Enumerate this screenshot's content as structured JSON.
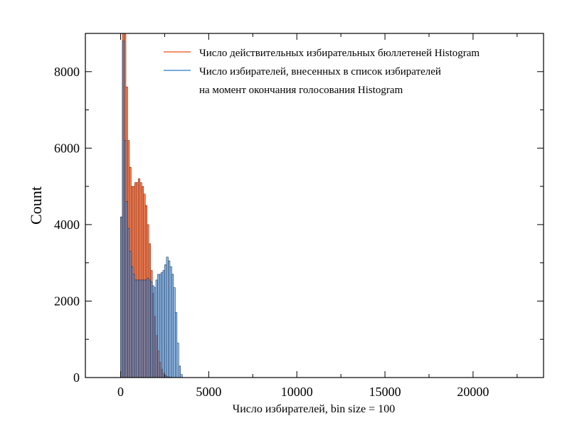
{
  "chart_data": {
    "type": "bar",
    "title": "",
    "xlabel": "Число избирателей, bin size = 100",
    "ylabel": "Count",
    "xlim": [
      -2000,
      24000
    ],
    "ylim": [
      0,
      9000
    ],
    "x_ticks": [
      0,
      5000,
      10000,
      15000,
      20000
    ],
    "x_tick_labels": [
      "0",
      "5000",
      "10000",
      "15000",
      "20000"
    ],
    "y_ticks": [
      0,
      2000,
      4000,
      6000,
      8000
    ],
    "y_tick_labels": [
      "0",
      "2000",
      "4000",
      "6000",
      "8000"
    ],
    "bin_size": 100,
    "grid": false,
    "legend_position": "top-right",
    "series": [
      {
        "name": "Число действительных избирательных бюллетеней Histogram",
        "color": "#f26b3a",
        "bins_start": 0,
        "values": [
          4200,
          9000,
          9000,
          7600,
          6200,
          5500,
          5000,
          5000,
          5100,
          5100,
          5200,
          5100,
          5000,
          4800,
          4500,
          4000,
          3500,
          2800,
          2200,
          1600,
          1100,
          700,
          400,
          220,
          120,
          60,
          30,
          15,
          8,
          4,
          2,
          1,
          0,
          0,
          0
        ]
      },
      {
        "name": "Число избирателей, внесенных в список избирателей на момент окончания голосования Histogram",
        "color": "#4a90d9",
        "bins_start": 0,
        "values": [
          4200,
          8800,
          6200,
          4600,
          3900,
          3300,
          2900,
          2700,
          2550,
          2550,
          2550,
          2550,
          2550,
          2550,
          2550,
          2600,
          2550,
          2500,
          2400,
          2350,
          2550,
          2700,
          2700,
          2750,
          2800,
          2950,
          3150,
          3050,
          2900,
          2700,
          2350,
          1700,
          900,
          300,
          80
        ]
      }
    ]
  }
}
